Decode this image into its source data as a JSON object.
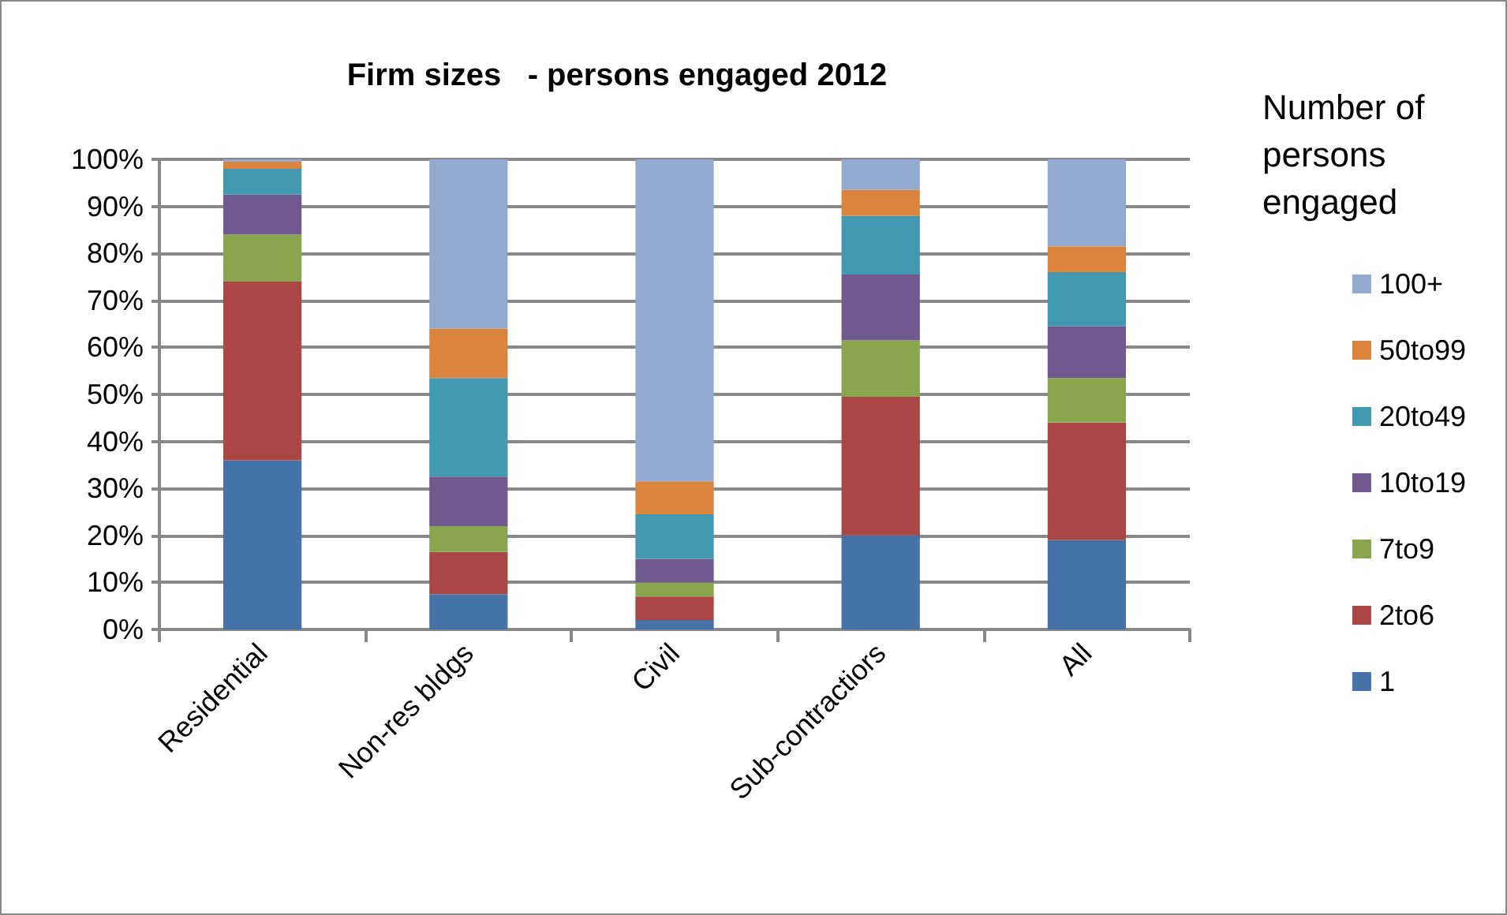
{
  "chart_data": {
    "type": "bar",
    "stacked": true,
    "title": "Firm sizes   - persons engaged 2012",
    "legend_title": "Number of persons engaged",
    "categories": [
      "Residential",
      "Non-res bldgs",
      "Civil",
      "Sub-contractiors",
      "All"
    ],
    "series": [
      {
        "name": "1",
        "color": "#4572a7",
        "values": [
          36,
          7.5,
          2,
          20,
          19
        ]
      },
      {
        "name": "2to6",
        "color": "#aa4643",
        "values": [
          38,
          9,
          5,
          29.5,
          25
        ]
      },
      {
        "name": "7to9",
        "color": "#89a54e",
        "values": [
          10,
          5.5,
          3,
          12,
          9.5
        ]
      },
      {
        "name": "10to19",
        "color": "#71588f",
        "values": [
          8.5,
          10.5,
          5,
          14,
          11
        ]
      },
      {
        "name": "20to49",
        "color": "#4198af",
        "values": [
          5.5,
          21,
          9.5,
          12.5,
          11.5
        ]
      },
      {
        "name": "50to99",
        "color": "#db843d",
        "values": [
          1.5,
          10.5,
          7,
          5.5,
          5.5
        ]
      },
      {
        "name": "100+",
        "color": "#93a9cf",
        "values": [
          0.5,
          36,
          68.5,
          6.5,
          18.5
        ]
      }
    ],
    "ylim": [
      0,
      100
    ],
    "yticks": [
      {
        "value": 0,
        "label": "0%"
      },
      {
        "value": 10,
        "label": "10%"
      },
      {
        "value": 20,
        "label": "20%"
      },
      {
        "value": 30,
        "label": "30%"
      },
      {
        "value": 40,
        "label": "40%"
      },
      {
        "value": 50,
        "label": "50%"
      },
      {
        "value": 60,
        "label": "60%"
      },
      {
        "value": 70,
        "label": "70%"
      },
      {
        "value": 80,
        "label": "80%"
      },
      {
        "value": 90,
        "label": "90%"
      },
      {
        "value": 100,
        "label": "100%"
      }
    ],
    "grid": "y",
    "legend": "right"
  }
}
